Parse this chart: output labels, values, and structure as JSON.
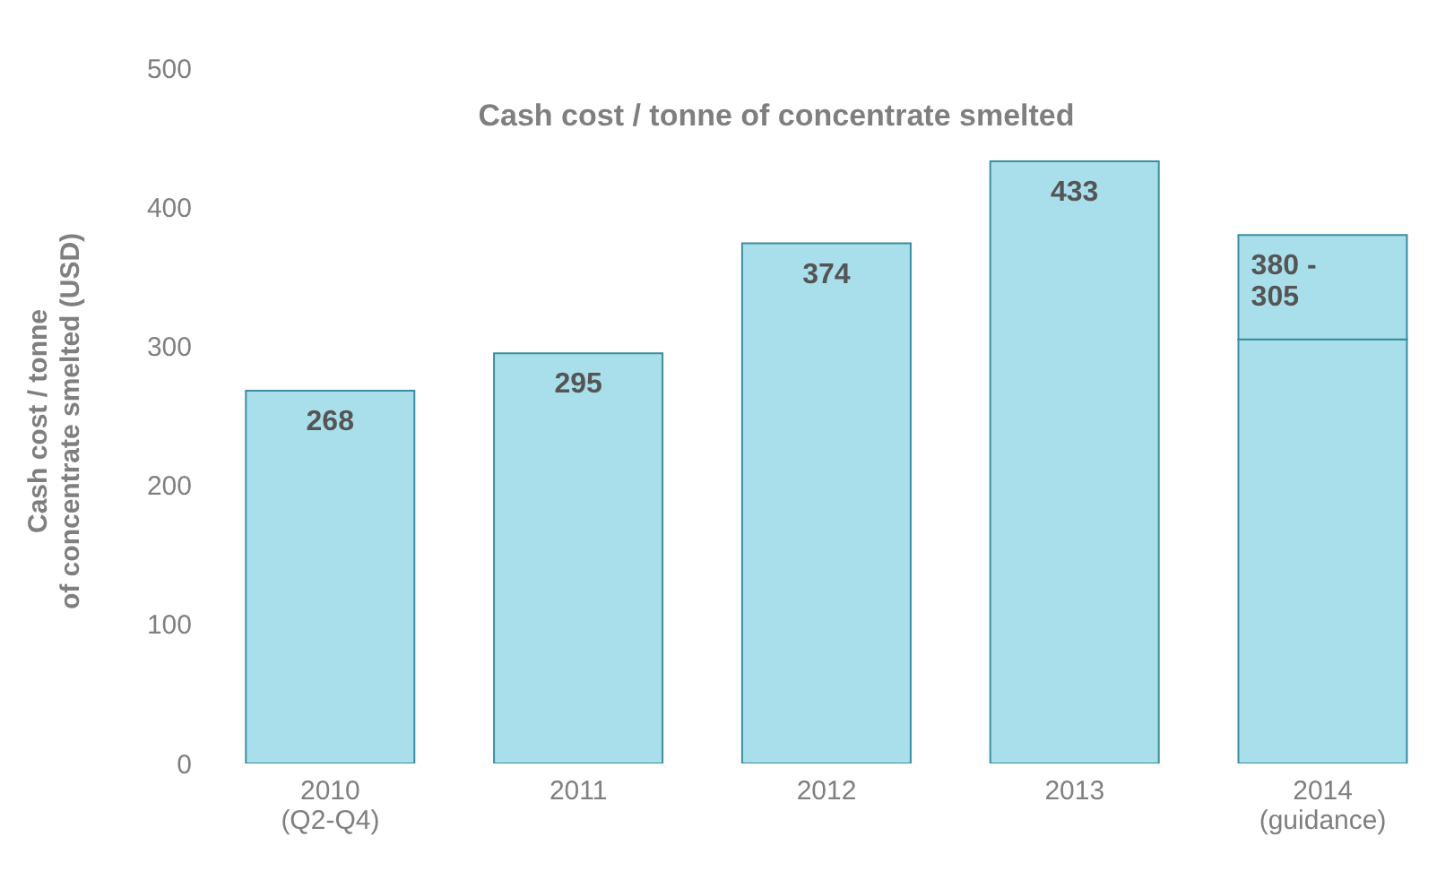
{
  "chart_data": {
    "type": "bar",
    "title": "Cash cost / tonne of concentrate smelted",
    "ylabel": "Cash cost / tonne\nof concentrate smelted (USD)",
    "categories": [
      "2010\n(Q2-Q4)",
      "2011",
      "2012",
      "2013",
      "2014\n(guidance)"
    ],
    "stacked": true,
    "series": [
      {
        "color": "#a8dfea",
        "values": [
          268,
          295,
          374,
          433,
          305
        ],
        "value_labels": [
          "268",
          "295",
          "374",
          "433",
          null
        ]
      },
      {
        "color": "#a8dfea",
        "values": [
          null,
          null,
          null,
          null,
          75
        ]
      }
    ],
    "annotations": [
      {
        "text": "380 -\n305",
        "x": "2014\n(guidance)",
        "y": 380
      }
    ],
    "ylim": [
      0,
      500
    ],
    "yticks": [
      0,
      100,
      200,
      300,
      400,
      500
    ],
    "grid": false
  }
}
